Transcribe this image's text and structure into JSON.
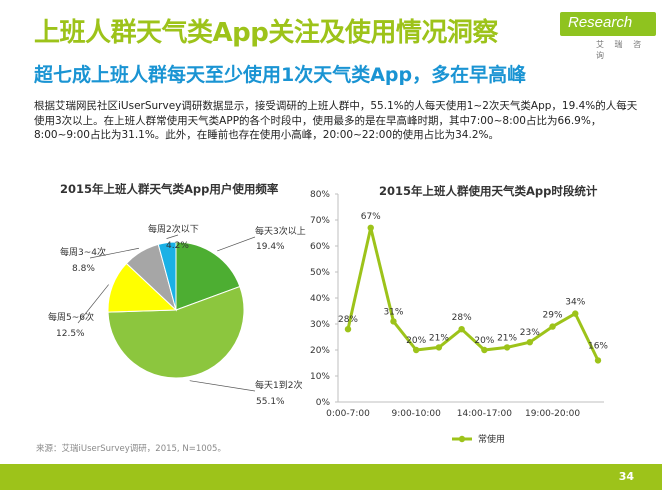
{
  "header": {
    "title": "上班人群天气类App关注及使用情况洞察",
    "subtitle": "超七成上班人群每天至少使用1次天气类App，多在早高峰",
    "logo_text": "Research",
    "logo_sub": "艾 瑞 咨 询",
    "accent_color": "#9dc31a",
    "subtitle_color": "#1a94d3"
  },
  "description": "根据艾瑞网民社区iUserSurvey调研数据显示，接受调研的上班人群中，55.1%的人每天使用1~2次天气类App，19.4%的人每天使用3次以上。在上班人群常使用天气类APP的各个时段中，使用最多的是在早高峰时期，其中7:00~8:00占比为66.9%，8:00~9:00占比为31.1%。此外，在睡前也存在使用小高峰，20:00~22:00的使用占比为34.2%。",
  "chart_data": [
    {
      "type": "pie",
      "title": "2015年上班人群天气类App用户使用频率",
      "slices": [
        {
          "label": "每天1到2次",
          "value": 55.1,
          "value_label": "55.1%",
          "color": "#8cc63e"
        },
        {
          "label": "每周5~6次",
          "value": 12.5,
          "value_label": "12.5%",
          "color": "#ffff00"
        },
        {
          "label": "每周3~4次",
          "value": 8.8,
          "value_label": "8.8%",
          "color": "#a6a6a6"
        },
        {
          "label": "每周2次以下",
          "value": 4.2,
          "value_label": "4.2%",
          "color": "#1ab1e6"
        },
        {
          "label": "每天3次以上",
          "value": 19.4,
          "value_label": "19.4%",
          "color": "#4dae32"
        }
      ]
    },
    {
      "type": "line",
      "title": "2015年上班人群使用天气类App时段统计",
      "x_tick_labels": [
        "0:00-7:00",
        "9:00-10:00",
        "14:00-17:00",
        "19:00-20:00"
      ],
      "ylim": [
        0,
        80
      ],
      "y_ticks": [
        "0%",
        "10%",
        "20%",
        "30%",
        "40%",
        "50%",
        "60%",
        "70%",
        "80%"
      ],
      "grid": false,
      "legend_position": "bottom",
      "series": [
        {
          "name": "常使用",
          "color": "#9dc31a",
          "values": [
            28,
            67,
            31,
            20,
            21,
            28,
            20,
            21,
            23,
            29,
            34,
            16
          ],
          "value_labels": [
            "28%",
            "67%",
            "31%",
            "20%",
            "21%",
            "28%",
            "20%",
            "21%",
            "23%",
            "29%",
            "34%",
            "16%"
          ]
        }
      ]
    }
  ],
  "source_note": "来源：艾瑞iUserSurvey调研，2015, N=1005。",
  "page_number": "34"
}
